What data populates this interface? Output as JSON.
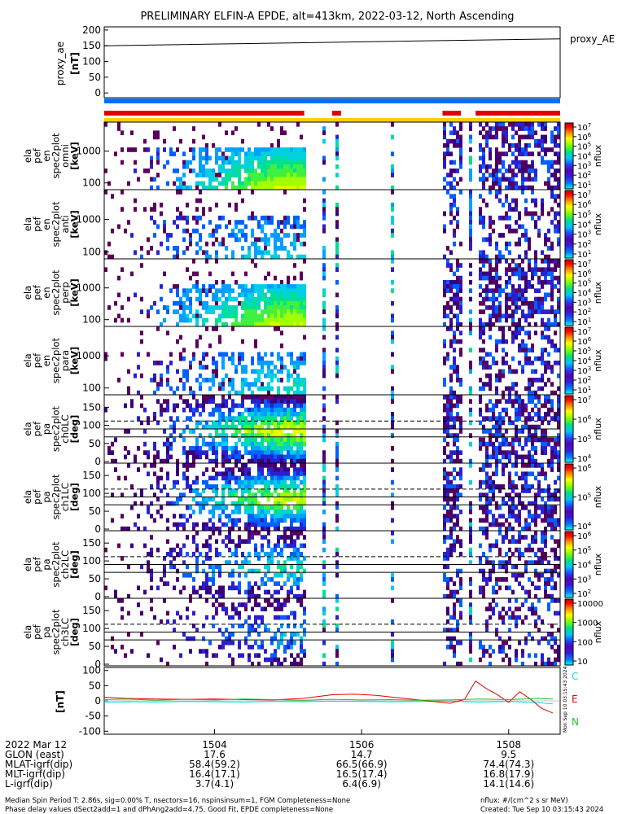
{
  "title": "PRELIMINARY ELFIN-A EPDE, alt=413km, 2022-03-12, North Ascending",
  "colors": {
    "red": "#e00000",
    "blue": "#0070ff",
    "yellow": "#ffd000",
    "green": "#20c020",
    "cyan": "#00e0e0"
  },
  "chart_data": [
    {
      "type": "line",
      "ylabel": [
        "proxy_ae",
        "[nT]"
      ],
      "series": [
        {
          "name": "proxy_AE",
          "x": [
            1502.5,
            1508.7
          ],
          "values": [
            150,
            172
          ]
        }
      ],
      "ylim": [
        -15,
        210
      ],
      "yticks": [
        "200",
        "150",
        "100",
        "50",
        "0"
      ]
    },
    {
      "type": "heatmap",
      "name": "flag-bars",
      "bars": [
        {
          "color": "blue",
          "segments": [
            [
              1502.5,
              1508.7
            ]
          ]
        },
        {
          "color": "red",
          "segments": [
            [
              1502.5,
              1505.22
            ],
            [
              1505.6,
              1505.72
            ],
            [
              1507.1,
              1507.35
            ],
            [
              1507.55,
              1508.7
            ]
          ]
        },
        {
          "color": "yellow",
          "segments": [
            [
              1502.5,
              1508.7
            ]
          ]
        }
      ]
    },
    {
      "type": "heatmap",
      "ylabel": [
        "ela",
        "pef",
        "en",
        "spec2plot",
        "omni",
        "[keV]"
      ],
      "yscale": "log",
      "yticks": [
        "1000",
        "100"
      ],
      "colorbar": {
        "label": "nflux",
        "ticks": [
          "10^7",
          "10^6",
          "10^5",
          "10^4",
          "10^3",
          "10^2",
          "10^1"
        ]
      }
    },
    {
      "type": "heatmap",
      "ylabel": [
        "ela",
        "pef",
        "en",
        "spec2plot",
        "anti",
        "[keV]"
      ],
      "yscale": "log",
      "yticks": [
        "1000",
        "100"
      ],
      "colorbar": {
        "label": "nflux",
        "ticks": [
          "10^7",
          "10^6",
          "10^5",
          "10^4",
          "10^3",
          "10^2",
          "10^1"
        ]
      }
    },
    {
      "type": "heatmap",
      "ylabel": [
        "ela",
        "pef",
        "en",
        "spec2plot",
        "perp",
        "[keV]"
      ],
      "yscale": "log",
      "yticks": [
        "1000",
        "100"
      ],
      "colorbar": {
        "label": "nflux",
        "ticks": [
          "10^7",
          "10^6",
          "10^5",
          "10^4",
          "10^3",
          "10^2",
          "10^1"
        ]
      }
    },
    {
      "type": "heatmap",
      "ylabel": [
        "ela",
        "pef",
        "en",
        "spec2plot",
        "para",
        "[keV]"
      ],
      "yscale": "log",
      "yticks": [
        "1000",
        "100"
      ],
      "colorbar": {
        "label": "nflux",
        "ticks": [
          "10^7",
          "10^6",
          "10^5",
          "10^4",
          "10^3",
          "10^2",
          "10^1"
        ]
      }
    },
    {
      "type": "heatmap",
      "ylabel": [
        "ela",
        "pef",
        "pa",
        "spec2plot",
        "ch0LC",
        "[deg]"
      ],
      "yticks": [
        "150",
        "100",
        "50",
        "0"
      ],
      "colorbar": {
        "label": "nflux",
        "ticks": [
          "10^7",
          "10^6",
          "10^5",
          "10^4"
        ]
      }
    },
    {
      "type": "heatmap",
      "ylabel": [
        "ela",
        "pef",
        "pa",
        "spec2plot",
        "ch1LC",
        "[deg]"
      ],
      "yticks": [
        "150",
        "100",
        "50",
        "0"
      ],
      "colorbar": {
        "label": "nflux",
        "ticks": [
          "10^6",
          "10^5",
          "10^4"
        ]
      }
    },
    {
      "type": "heatmap",
      "ylabel": [
        "ela",
        "pef",
        "pa",
        "spec2plot",
        "ch2LC",
        "[deg]"
      ],
      "yticks": [
        "150",
        "100",
        "50",
        "0"
      ],
      "colorbar": {
        "label": "nflux",
        "ticks": [
          "10^6",
          "10^5",
          "10^4",
          "10^3",
          "10^2"
        ]
      }
    },
    {
      "type": "heatmap",
      "ylabel": [
        "ela",
        "pef",
        "pa",
        "spec2plot",
        "ch3LC",
        "[deg]"
      ],
      "yticks": [
        "150",
        "100",
        "50",
        "0"
      ],
      "colorbar": {
        "label": "nflux",
        "ticks": [
          "10000",
          "1000",
          "100",
          "10"
        ]
      }
    },
    {
      "type": "line",
      "ylabel": [
        "[nT]"
      ],
      "ylim": [
        -110,
        110
      ],
      "yticks": [
        "100",
        "50",
        "0",
        "-50",
        "-100"
      ],
      "legend_placement": "right",
      "series": [
        {
          "name": "C",
          "color": "cyan",
          "x": [
            1502.5,
            1502.8,
            1503.2,
            1503.6,
            1504.0,
            1504.4,
            1504.8,
            1505.2,
            1505.6,
            1506.0,
            1506.4,
            1506.8,
            1507.2,
            1507.6,
            1508.0,
            1508.4,
            1508.6
          ],
          "values": [
            -5,
            -3,
            -4,
            -2,
            -3,
            -4,
            -2,
            -3,
            -1,
            -2,
            -3,
            -2,
            -1,
            -4,
            -2,
            -6,
            -10
          ]
        },
        {
          "name": "E",
          "color": "red",
          "x": [
            1502.5,
            1502.8,
            1503.2,
            1503.6,
            1504.0,
            1504.4,
            1504.8,
            1505.2,
            1505.6,
            1505.9,
            1506.2,
            1506.5,
            1506.9,
            1507.2,
            1507.4,
            1507.55,
            1507.7,
            1507.85,
            1508.0,
            1508.15,
            1508.3,
            1508.45,
            1508.6
          ],
          "values": [
            12,
            8,
            6,
            5,
            6,
            4,
            3,
            8,
            20,
            22,
            18,
            10,
            0,
            -8,
            5,
            65,
            40,
            20,
            -5,
            30,
            5,
            -25,
            -40
          ]
        },
        {
          "name": "N",
          "color": "green",
          "x": [
            1502.5,
            1502.8,
            1503.2,
            1503.6,
            1504.0,
            1504.4,
            1504.8,
            1505.2,
            1505.6,
            1506.0,
            1506.4,
            1506.8,
            1507.2,
            1507.6,
            1508.0,
            1508.4,
            1508.6
          ],
          "values": [
            4,
            6,
            2,
            5,
            3,
            6,
            4,
            2,
            5,
            3,
            4,
            2,
            3,
            6,
            4,
            8,
            6
          ]
        }
      ]
    }
  ],
  "side_label": "Mon Sep 10 03:15:43 2024",
  "xaxis": {
    "ticks": [
      "1504",
      "1506",
      "1508"
    ],
    "date": "2022 Mar 12",
    "rows": [
      {
        "label": "GLON (east)",
        "values": [
          "17.6",
          "14.7",
          "9.5"
        ]
      },
      {
        "label": "MLAT-igrf(dip)",
        "values": [
          "58.4(59.2)",
          "66.5(66.9)",
          "74.4(74.3)"
        ]
      },
      {
        "label": "MLT-igrf(dip)",
        "values": [
          "16.4(17.1)",
          "16.5(17.4)",
          "16.8(17.9)"
        ]
      },
      {
        "label": "L-igrf(dip)",
        "values": [
          "3.7(4.1)",
          "6.4(6.9)",
          "14.1(14.6)"
        ]
      }
    ]
  },
  "footer": {
    "line1": "Median Spin Period T: 2.86s, sig=0.00% T, nsectors=16, nspinsinsum=1, FGM Completeness=None",
    "line2": "Phase delay values dSect2add=1 and dPhAng2add=4.75, Good Fit, EPDE completeness=None",
    "units": "nflux: #/(cm^2 s sr MeV)",
    "created": "Created: Tue Sep 10 03:15:43 2024"
  }
}
